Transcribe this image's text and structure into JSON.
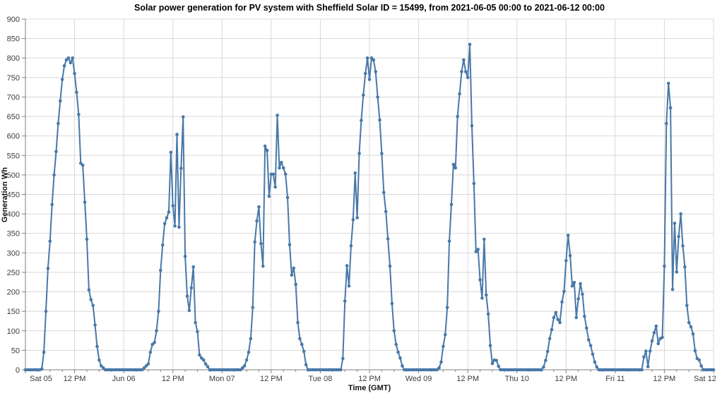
{
  "page": {
    "background": "#ffffff"
  },
  "chart_data": {
    "type": "line",
    "title": "Solar power generation for PV system with Sheffield Solar ID = 15499, from 2021-06-05 00:00 to 2021-06-12 00:00",
    "xlabel": "Time (GMT)",
    "ylabel": "Generation Wh",
    "x_range": [
      "2021-06-05 00:00",
      "2021-06-12 00:00"
    ],
    "interval_minutes": 30,
    "ylim": [
      0,
      900
    ],
    "y_ticks": [
      0,
      50,
      100,
      150,
      200,
      250,
      300,
      350,
      400,
      450,
      500,
      550,
      600,
      650,
      700,
      750,
      800,
      850,
      900
    ],
    "x_ticks": [
      "Sat 05",
      "12 PM",
      "Jun 06",
      "12 PM",
      "Mon 07",
      "12 PM",
      "Tue 08",
      "12 PM",
      "Wed 09",
      "12 PM",
      "Thu 10",
      "12 PM",
      "Fri 11",
      "12 PM",
      "Sat 12"
    ],
    "grid": true,
    "legend": "none",
    "line_color": "#4878a8",
    "grid_color": "#d8d8d8",
    "axis_color": "#7f7f7f",
    "marker": "circle",
    "series": [
      {
        "name": "Generation Wh",
        "values": [
          0,
          0,
          0,
          0,
          0,
          0,
          0,
          0,
          2,
          45,
          150,
          260,
          330,
          424,
          500,
          560,
          632,
          690,
          745,
          780,
          795,
          800,
          788,
          800,
          760,
          712,
          655,
          530,
          525,
          430,
          335,
          205,
          180,
          165,
          115,
          60,
          25,
          10,
          5,
          0,
          0,
          0,
          0,
          0,
          0,
          0,
          0,
          0,
          0,
          0,
          0,
          0,
          0,
          0,
          0,
          0,
          0,
          0,
          5,
          10,
          15,
          45,
          65,
          70,
          100,
          150,
          255,
          320,
          375,
          390,
          405,
          558,
          421,
          369,
          604,
          366,
          517,
          649,
          291,
          189,
          152,
          210,
          264,
          121,
          98,
          38,
          30,
          25,
          15,
          8,
          0,
          0,
          0,
          0,
          0,
          0,
          0,
          0,
          0,
          0,
          0,
          0,
          0,
          0,
          0,
          0,
          5,
          10,
          25,
          45,
          80,
          160,
          328,
          382,
          418,
          324,
          266,
          574,
          563,
          445,
          502,
          502,
          469,
          653,
          518,
          532,
          518,
          502,
          442,
          321,
          243,
          261,
          219,
          121,
          80,
          65,
          47,
          13,
          0,
          0,
          0,
          0,
          0,
          0,
          0,
          0,
          0,
          0,
          0,
          0,
          0,
          0,
          0,
          0,
          0,
          29,
          176,
          267,
          215,
          318,
          385,
          505,
          390,
          555,
          640,
          705,
          760,
          800,
          745,
          800,
          795,
          765,
          700,
          641,
          555,
          455,
          406,
          336,
          266,
          170,
          100,
          65,
          45,
          30,
          10,
          0,
          0,
          0,
          0,
          0,
          0,
          0,
          0,
          0,
          0,
          0,
          0,
          0,
          0,
          0,
          0,
          0,
          5,
          20,
          60,
          90,
          160,
          330,
          424,
          527,
          518,
          650,
          708,
          765,
          795,
          765,
          750,
          835,
          626,
          478,
          303,
          309,
          231,
          184,
          335,
          192,
          143,
          62,
          16,
          25,
          24,
          9,
          0,
          0,
          0,
          0,
          0,
          0,
          0,
          0,
          0,
          0,
          0,
          0,
          0,
          0,
          0,
          0,
          0,
          0,
          0,
          0,
          0,
          7,
          24,
          47,
          80,
          103,
          134,
          147,
          129,
          121,
          174,
          201,
          280,
          345,
          293,
          215,
          224,
          134,
          182,
          221,
          194,
          137,
          107,
          77,
          62,
          40,
          20,
          7,
          0,
          0,
          0,
          0,
          0,
          0,
          0,
          0,
          0,
          0,
          0,
          0,
          0,
          0,
          0,
          0,
          0,
          0,
          0,
          0,
          0,
          0,
          33,
          48,
          8,
          48,
          74,
          95,
          112,
          67,
          80,
          83,
          266,
          632,
          735,
          672,
          206,
          376,
          251,
          342,
          400,
          318,
          264,
          165,
          121,
          110,
          92,
          49,
          29,
          25,
          10,
          0,
          0,
          0,
          0,
          0,
          0
        ]
      }
    ]
  }
}
